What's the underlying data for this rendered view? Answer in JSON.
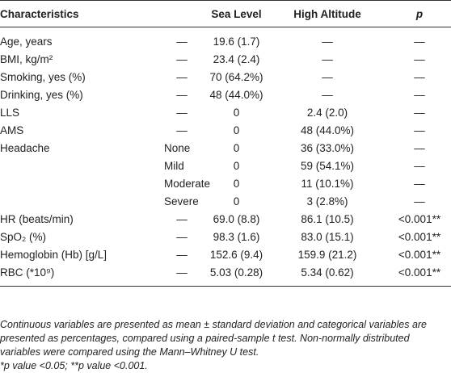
{
  "table": {
    "header": [
      "Characteristics",
      "",
      "Sea Level",
      "High Altitude",
      "p"
    ],
    "rows": [
      [
        "Age, years",
        "—",
        "19.6 (1.7)",
        "—",
        "—"
      ],
      [
        "BMI, kg/m²",
        "—",
        "23.4 (2.4)",
        "—",
        "—"
      ],
      [
        "Smoking, yes (%)",
        "—",
        "70 (64.2%)",
        "—",
        "—"
      ],
      [
        "Drinking, yes (%)",
        "—",
        "48 (44.0%)",
        "—",
        "—"
      ],
      [
        "LLS",
        "—",
        "0",
        "2.4 (2.0)",
        "—"
      ],
      [
        "AMS",
        "—",
        "0",
        "48 (44.0%)",
        "—"
      ],
      [
        "Headache",
        "None",
        "0",
        "36 (33.0%)",
        "—"
      ],
      [
        "",
        "Mild",
        "0",
        "59 (54.1%)",
        "—"
      ],
      [
        "",
        "Moderate",
        "0",
        "11 (10.1%)",
        "—"
      ],
      [
        "",
        "Severe",
        "0",
        "3 (2.8%)",
        "—"
      ],
      [
        "HR (beats/min)",
        "—",
        "69.0 (8.8)",
        "86.1 (10.5)",
        "<0.001**"
      ],
      [
        "SpO₂ (%)",
        "—",
        "98.3 (1.6)",
        "83.0 (15.1)",
        "<0.001**"
      ],
      [
        "Hemoglobin (Hb) [g/L]",
        "—",
        "152.6 (9.4)",
        "159.9 (21.2)",
        "<0.001**"
      ],
      [
        "RBC (*10⁹)",
        "—",
        "5.03 (0.28)",
        "5.34 (0.62)",
        "<0.001**"
      ]
    ],
    "notes": [
      "Continuous variables are presented as mean ± standard deviation and categorical variables are presented as percentages, compared using a paired-sample t test. Non-normally distributed variables were compared using the Mann–Whitney U test.",
      "*p value <0.05; **p value <0.001."
    ]
  }
}
